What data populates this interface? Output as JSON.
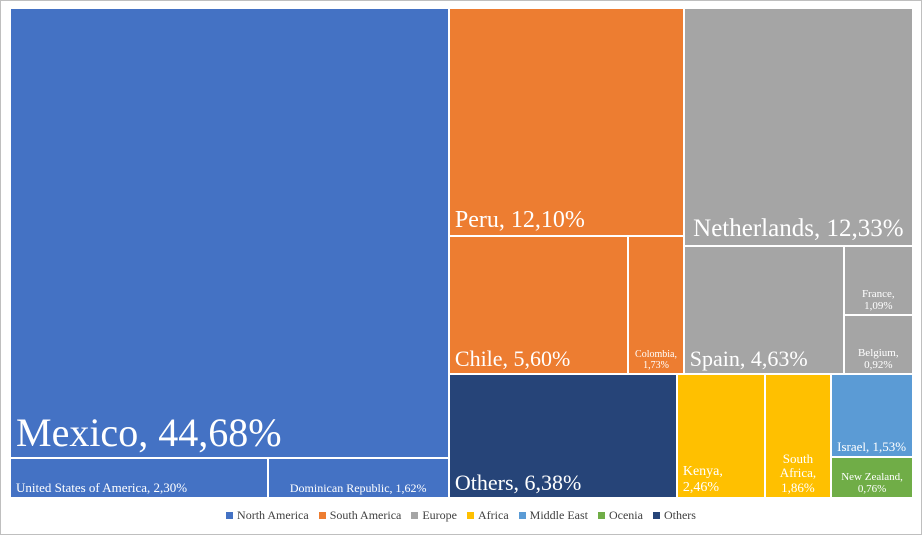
{
  "chart_data": {
    "type": "treemap",
    "series": [
      {
        "name": "North America",
        "color": "#4472c4",
        "values": [
          44.68,
          2.3,
          1.62
        ],
        "value_labels": [
          "Mexico, 44,68%",
          "United States of America, 2,30%",
          "Dominican Republic, 1,62%"
        ]
      },
      {
        "name": "South America",
        "color": "#ed7d31",
        "values": [
          12.1,
          5.6,
          1.73
        ],
        "value_labels": [
          "Peru, 12,10%",
          "Chile, 5,60%",
          "Colombia, 1,73%"
        ]
      },
      {
        "name": "Europe",
        "color": "#a5a5a5",
        "values": [
          12.33,
          4.63,
          1.09,
          0.92
        ],
        "value_labels": [
          "Netherlands, 12,33%",
          "Spain, 4,63%",
          "France, 1,09%",
          "Belgium, 0,92%"
        ]
      },
      {
        "name": "Africa",
        "color": "#ffc000",
        "values": [
          2.46,
          1.86
        ],
        "value_labels": [
          "Kenya, 2,46%",
          "South Africa, 1,86%"
        ]
      },
      {
        "name": "Middle East",
        "color": "#5b9bd5",
        "values": [
          1.53
        ],
        "value_labels": [
          "Israel, 1,53%"
        ]
      },
      {
        "name": "Ocenia",
        "color": "#70ad47",
        "values": [
          0.76
        ],
        "value_labels": [
          "New Zealand, 0,76%"
        ]
      },
      {
        "name": "Others",
        "color": "#264478",
        "values": [
          6.38
        ],
        "value_labels": [
          "Others, 6,38%"
        ]
      }
    ]
  }
}
